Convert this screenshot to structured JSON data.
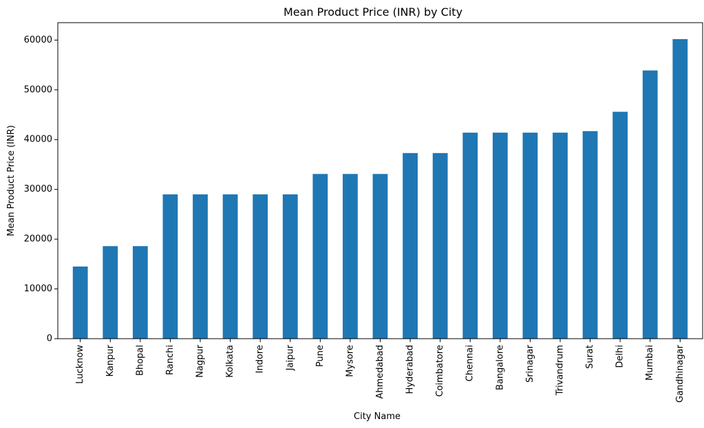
{
  "chart_data": {
    "type": "bar",
    "title": "Mean Product Price (INR) by City",
    "xlabel": "City Name",
    "ylabel": "Mean Product Price (INR)",
    "ylim": [
      0,
      63500
    ],
    "yticks": [
      0,
      10000,
      20000,
      30000,
      40000,
      50000,
      60000
    ],
    "grid": false,
    "color": "#1f77b4",
    "categories": [
      "Lucknow",
      "Kanpur",
      "Bhopal",
      "Ranchi",
      "Nagpur",
      "Kolkata",
      "Indore",
      "Jaipur",
      "Pune",
      "Mysore",
      "Ahmedabad",
      "Hyderabad",
      "Coimbatore",
      "Chennai",
      "Bangalore",
      "Srinagar",
      "Trivandrum",
      "Surat",
      "Delhi",
      "Mumbai",
      "Gandhinagar"
    ],
    "values": [
      14500,
      18600,
      18600,
      29000,
      29000,
      29000,
      29000,
      29000,
      33100,
      33100,
      33100,
      37300,
      37300,
      41400,
      41400,
      41400,
      41400,
      41700,
      45600,
      53900,
      60200
    ]
  }
}
